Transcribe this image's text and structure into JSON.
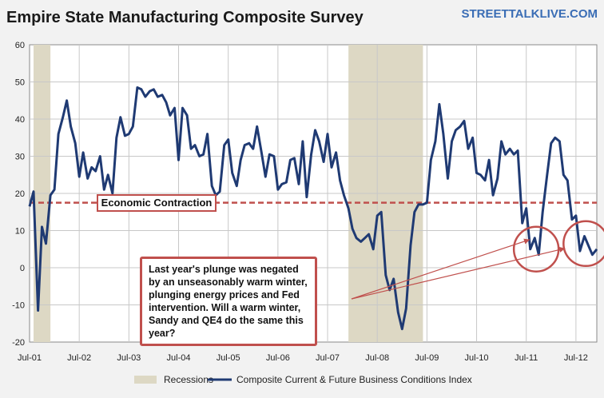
{
  "chart_data": {
    "type": "line",
    "title": "Empire State Manufacturing Composite Survey",
    "brand": "STREETTALKLIVE.COM",
    "ylim": [
      -20,
      60
    ],
    "yticks": [
      60,
      50,
      40,
      30,
      20,
      10,
      0,
      -10,
      -20
    ],
    "xlim": [
      2001.5,
      2012.92
    ],
    "xticks": [
      {
        "label": "Jul-01",
        "x": 2001.5
      },
      {
        "label": "Jul-02",
        "x": 2002.5
      },
      {
        "label": "Jul-03",
        "x": 2003.5
      },
      {
        "label": "Jul-04",
        "x": 2004.5
      },
      {
        "label": "Jul-05",
        "x": 2005.5
      },
      {
        "label": "Jul-06",
        "x": 2006.5
      },
      {
        "label": "Jul-07",
        "x": 2007.5
      },
      {
        "label": "Jul-08",
        "x": 2008.5
      },
      {
        "label": "Jul-09",
        "x": 2009.5
      },
      {
        "label": "Jul-10",
        "x": 2010.5
      },
      {
        "label": "Jul-11",
        "x": 2011.5
      },
      {
        "label": "Jul-12",
        "x": 2012.5
      }
    ],
    "recessions": [
      {
        "start": 2001.58,
        "end": 2001.92
      },
      {
        "start": 2007.92,
        "end": 2009.42
      }
    ],
    "threshold": {
      "value": 17.5,
      "label": "Economic Contraction"
    },
    "series": [
      {
        "name": "Composite Current & Future Business Conditions Index",
        "color": "#1f3a73",
        "points": [
          [
            2001.5,
            16.5
          ],
          [
            2001.58,
            20.5
          ],
          [
            2001.67,
            -11.5
          ],
          [
            2001.75,
            11.0
          ],
          [
            2001.83,
            6.5
          ],
          [
            2001.92,
            19.5
          ],
          [
            2002.0,
            21.0
          ],
          [
            2002.08,
            36.0
          ],
          [
            2002.17,
            40.5
          ],
          [
            2002.25,
            45.0
          ],
          [
            2002.33,
            38.0
          ],
          [
            2002.42,
            33.5
          ],
          [
            2002.5,
            24.5
          ],
          [
            2002.58,
            31.0
          ],
          [
            2002.67,
            24.0
          ],
          [
            2002.75,
            27.0
          ],
          [
            2002.83,
            26.0
          ],
          [
            2002.92,
            30.0
          ],
          [
            2003.0,
            21.0
          ],
          [
            2003.08,
            25.0
          ],
          [
            2003.17,
            20.0
          ],
          [
            2003.25,
            35.0
          ],
          [
            2003.33,
            40.5
          ],
          [
            2003.42,
            35.5
          ],
          [
            2003.5,
            36.0
          ],
          [
            2003.58,
            38.0
          ],
          [
            2003.67,
            48.5
          ],
          [
            2003.75,
            48.0
          ],
          [
            2003.83,
            46.0
          ],
          [
            2003.92,
            47.5
          ],
          [
            2004.0,
            48.0
          ],
          [
            2004.08,
            46.0
          ],
          [
            2004.17,
            46.5
          ],
          [
            2004.25,
            44.5
          ],
          [
            2004.33,
            41.0
          ],
          [
            2004.42,
            43.0
          ],
          [
            2004.5,
            29.0
          ],
          [
            2004.58,
            43.0
          ],
          [
            2004.67,
            41.0
          ],
          [
            2004.75,
            32.0
          ],
          [
            2004.83,
            33.0
          ],
          [
            2004.92,
            30.0
          ],
          [
            2005.0,
            30.5
          ],
          [
            2005.08,
            36.0
          ],
          [
            2005.17,
            22.0
          ],
          [
            2005.25,
            19.5
          ],
          [
            2005.33,
            20.5
          ],
          [
            2005.42,
            33.0
          ],
          [
            2005.5,
            34.5
          ],
          [
            2005.58,
            25.5
          ],
          [
            2005.67,
            22.0
          ],
          [
            2005.75,
            29.0
          ],
          [
            2005.83,
            33.0
          ],
          [
            2005.92,
            33.5
          ],
          [
            2006.0,
            32.0
          ],
          [
            2006.08,
            38.0
          ],
          [
            2006.17,
            31.0
          ],
          [
            2006.25,
            24.5
          ],
          [
            2006.33,
            30.5
          ],
          [
            2006.42,
            30.0
          ],
          [
            2006.5,
            21.0
          ],
          [
            2006.58,
            22.5
          ],
          [
            2006.67,
            23.0
          ],
          [
            2006.75,
            29.0
          ],
          [
            2006.83,
            29.5
          ],
          [
            2006.92,
            22.5
          ],
          [
            2007.0,
            34.0
          ],
          [
            2007.08,
            19.0
          ],
          [
            2007.17,
            30.5
          ],
          [
            2007.25,
            37.0
          ],
          [
            2007.33,
            34.0
          ],
          [
            2007.42,
            28.5
          ],
          [
            2007.5,
            36.0
          ],
          [
            2007.58,
            27.0
          ],
          [
            2007.67,
            31.0
          ],
          [
            2007.75,
            23.5
          ],
          [
            2007.83,
            19.5
          ],
          [
            2007.92,
            16.0
          ],
          [
            2008.0,
            10.5
          ],
          [
            2008.08,
            8.0
          ],
          [
            2008.17,
            7.0
          ],
          [
            2008.25,
            8.0
          ],
          [
            2008.33,
            9.0
          ],
          [
            2008.42,
            5.0
          ],
          [
            2008.5,
            14.0
          ],
          [
            2008.58,
            15.0
          ],
          [
            2008.67,
            -2.0
          ],
          [
            2008.75,
            -6.0
          ],
          [
            2008.83,
            -3.0
          ],
          [
            2008.92,
            -12.0
          ],
          [
            2009.0,
            -16.5
          ],
          [
            2009.08,
            -11.0
          ],
          [
            2009.17,
            6.0
          ],
          [
            2009.25,
            15.0
          ],
          [
            2009.33,
            17.0
          ],
          [
            2009.42,
            17.0
          ],
          [
            2009.5,
            17.5
          ],
          [
            2009.58,
            29.0
          ],
          [
            2009.67,
            34.0
          ],
          [
            2009.75,
            44.0
          ],
          [
            2009.83,
            36.0
          ],
          [
            2009.92,
            24.0
          ],
          [
            2010.0,
            34.0
          ],
          [
            2010.08,
            37.0
          ],
          [
            2010.17,
            38.0
          ],
          [
            2010.25,
            39.5
          ],
          [
            2010.33,
            32.0
          ],
          [
            2010.42,
            35.0
          ],
          [
            2010.5,
            25.5
          ],
          [
            2010.58,
            25.0
          ],
          [
            2010.67,
            23.5
          ],
          [
            2010.75,
            29.0
          ],
          [
            2010.83,
            19.5
          ],
          [
            2010.92,
            24.0
          ],
          [
            2011.0,
            34.0
          ],
          [
            2011.08,
            30.5
          ],
          [
            2011.17,
            32.0
          ],
          [
            2011.25,
            30.5
          ],
          [
            2011.33,
            31.5
          ],
          [
            2011.42,
            12.0
          ],
          [
            2011.5,
            16.0
          ],
          [
            2011.58,
            5.0
          ],
          [
            2011.67,
            8.0
          ],
          [
            2011.75,
            3.5
          ],
          [
            2011.83,
            15.0
          ],
          [
            2011.92,
            25.0
          ],
          [
            2012.0,
            33.5
          ],
          [
            2012.08,
            35.0
          ],
          [
            2012.17,
            34.0
          ],
          [
            2012.25,
            25.0
          ],
          [
            2012.33,
            23.5
          ],
          [
            2012.42,
            13.0
          ],
          [
            2012.5,
            14.0
          ],
          [
            2012.58,
            4.5
          ],
          [
            2012.67,
            8.5
          ],
          [
            2012.75,
            6.0
          ],
          [
            2012.83,
            3.5
          ],
          [
            2012.92,
            5.0
          ]
        ]
      }
    ],
    "annotation": "Last year's plunge was negated by an unseasonably warm winter, plunging energy prices and Fed intervention. Will a warm winter, Sandy and QE4 do the same this year?",
    "legend": {
      "recessions": "Recessions",
      "series": "Composite Current & Future Business Conditions Index"
    },
    "colors": {
      "recession": "#ddd8c4",
      "series": "#1f3a73",
      "threshold": "#c0504d",
      "circle": "#c0504d",
      "grid": "#c8c8c8",
      "brand": "#3a6db5"
    }
  }
}
